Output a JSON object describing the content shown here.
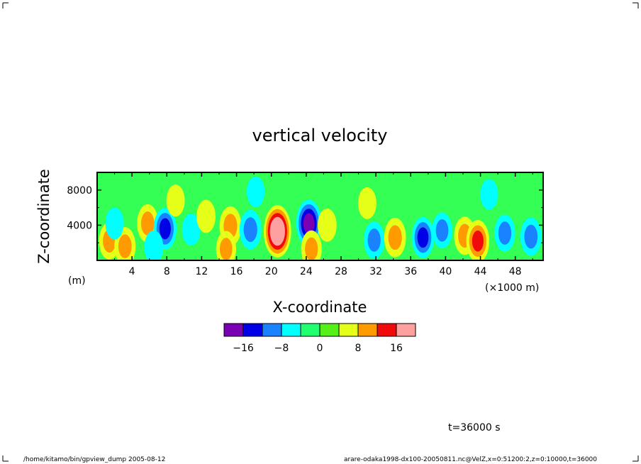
{
  "chart_data": {
    "type": "heatmap",
    "title": "vertical velocity",
    "xlabel": "X-coordinate",
    "ylabel": "Z-coordinate",
    "x_unit": "(×1000 m)",
    "y_unit": "(m)",
    "xlim": [
      0,
      51.2
    ],
    "ylim": [
      0,
      10000
    ],
    "x_ticks": [
      4,
      8,
      12,
      16,
      20,
      24,
      28,
      32,
      36,
      40,
      44,
      48
    ],
    "x_tick_labels": [
      "4",
      "8",
      "12",
      "16",
      "20",
      "24",
      "28",
      "32",
      "36",
      "40",
      "44",
      "48"
    ],
    "y_ticks": [
      4000,
      8000
    ],
    "y_tick_labels": [
      "4000",
      "8000"
    ],
    "background_color": "#33ff55",
    "colorbar": {
      "levels": [
        -20,
        -16,
        -12,
        -8,
        -4,
        0,
        4,
        8,
        12,
        16,
        20
      ],
      "colors": [
        "#7a00b4",
        "#0000e6",
        "#1a82ff",
        "#00ffff",
        "#20ff70",
        "#55f018",
        "#e6ff19",
        "#ff9b00",
        "#f00a0a",
        "#ffa0a0"
      ],
      "tick_values": [
        -16,
        -8,
        0,
        8,
        16
      ],
      "tick_labels": [
        "−16",
        "−8",
        "0",
        "8",
        "16"
      ]
    },
    "features": [
      {
        "x": 1.4,
        "z": 2200,
        "value": 9
      },
      {
        "x": 3.2,
        "z": 1600,
        "value": 10
      },
      {
        "x": 2.0,
        "z": 4200,
        "value": -5
      },
      {
        "x": 5.8,
        "z": 4200,
        "value": 10
      },
      {
        "x": 7.8,
        "z": 3600,
        "value": -13
      },
      {
        "x": 6.5,
        "z": 1500,
        "value": -6
      },
      {
        "x": 10.8,
        "z": 3500,
        "value": -5
      },
      {
        "x": 12.5,
        "z": 5000,
        "value": 6
      },
      {
        "x": 15.3,
        "z": 3900,
        "value": 11
      },
      {
        "x": 14.8,
        "z": 1300,
        "value": 8
      },
      {
        "x": 17.6,
        "z": 3500,
        "value": -11
      },
      {
        "x": 18.2,
        "z": 7800,
        "value": -4
      },
      {
        "x": 20.7,
        "z": 3300,
        "value": 21
      },
      {
        "x": 24.3,
        "z": 4200,
        "value": -17
      },
      {
        "x": 24.6,
        "z": 1300,
        "value": 9
      },
      {
        "x": 26.4,
        "z": 4000,
        "value": 6
      },
      {
        "x": 31.8,
        "z": 2300,
        "value": -9
      },
      {
        "x": 34.2,
        "z": 2600,
        "value": 11
      },
      {
        "x": 37.4,
        "z": 2600,
        "value": -12
      },
      {
        "x": 39.6,
        "z": 3400,
        "value": -8
      },
      {
        "x": 42.2,
        "z": 2800,
        "value": 10
      },
      {
        "x": 43.7,
        "z": 2200,
        "value": 13
      },
      {
        "x": 46.8,
        "z": 3100,
        "value": -9
      },
      {
        "x": 49.8,
        "z": 2700,
        "value": -10
      },
      {
        "x": 31.0,
        "z": 6500,
        "value": 5
      },
      {
        "x": 9.0,
        "z": 6800,
        "value": 5
      },
      {
        "x": 45.0,
        "z": 7500,
        "value": -4
      }
    ]
  },
  "footer": {
    "time_label": "t=36000 s",
    "left_caption": "/home/kitamo/bin/gpview_dump  2005-08-12",
    "right_caption": "arare-odaka1998-dx100-20050811.nc@VelZ,x=0:51200:2,z=0:10000,t=36000"
  }
}
